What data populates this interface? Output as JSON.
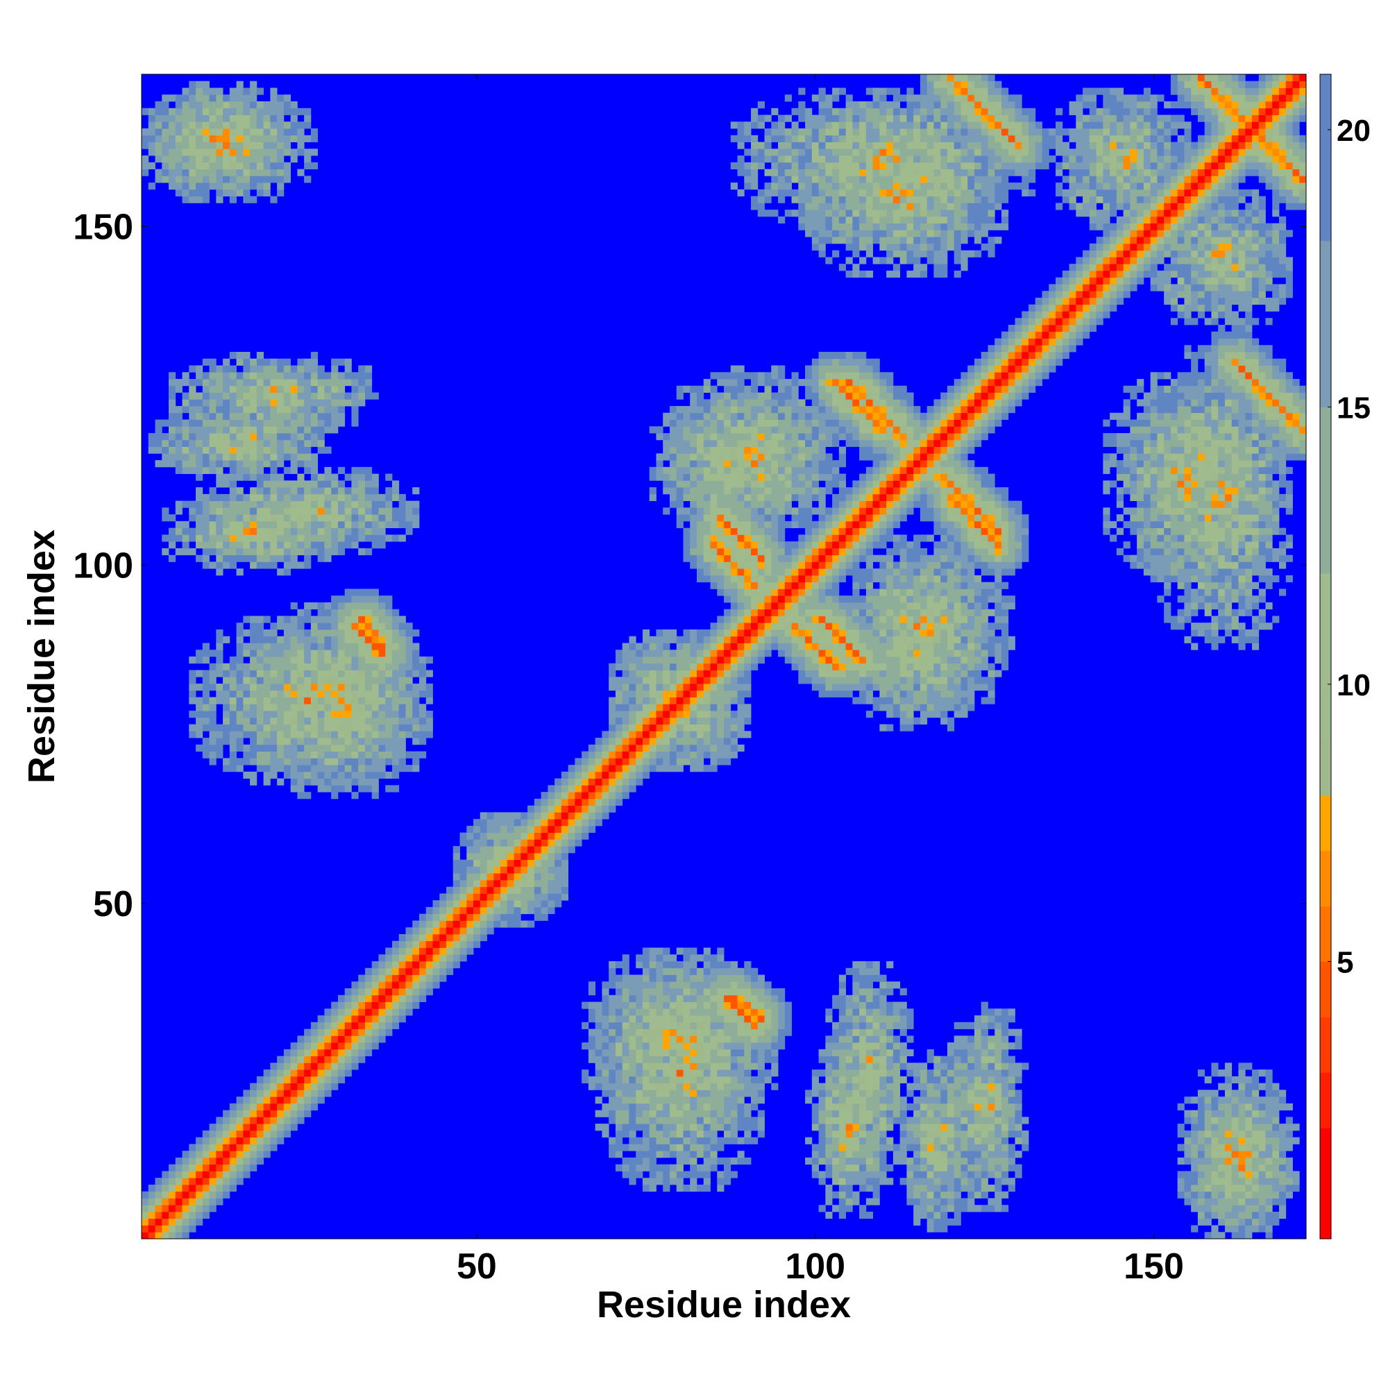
{
  "chart_data": {
    "type": "heatmap",
    "title": "",
    "xlabel": "Residue index",
    "ylabel": "Residue index",
    "xlim": [
      1,
      172
    ],
    "ylim": [
      1,
      172
    ],
    "n_residues": 172,
    "x_ticks": [
      50,
      100,
      150
    ],
    "y_ticks": [
      50,
      100,
      150
    ],
    "x_tick_labels": [
      "50",
      "100",
      "150"
    ],
    "y_tick_labels": [
      "50",
      "100",
      "150"
    ],
    "grid": false,
    "colorbar": {
      "position": "right",
      "range": [
        0,
        21
      ],
      "ticks": [
        5,
        10,
        15,
        20
      ],
      "tick_labels": [
        "5",
        "10",
        "15",
        "20"
      ],
      "cutoff": 21,
      "colors": [
        {
          "max": 2,
          "color": "#ff0000"
        },
        {
          "max": 3,
          "color": "#ff1f00"
        },
        {
          "max": 4,
          "color": "#ff3c00"
        },
        {
          "max": 5,
          "color": "#ff5500"
        },
        {
          "max": 6,
          "color": "#ff7300"
        },
        {
          "max": 7,
          "color": "#ff8c00"
        },
        {
          "max": 8,
          "color": "#ffa500"
        },
        {
          "max": 9,
          "color": "#9fb98c"
        },
        {
          "max": 12,
          "color": "#a0bb8e"
        },
        {
          "max": 15,
          "color": "#8eae9a"
        },
        {
          "max": 18,
          "color": "#7b9cb7"
        },
        {
          "max": 21,
          "color": "#5f86c2"
        },
        {
          "max": 999,
          "color": "#0000ff"
        }
      ]
    },
    "features": {
      "diagonal": "distance 0 on the main diagonal, increasing away from it",
      "contact_lines": [
        {
          "type": "antiparallel",
          "from": [
            85,
            103
          ],
          "to": [
            91,
            97
          ]
        },
        {
          "type": "antiparallel",
          "from": [
            101,
            92
          ],
          "to": [
            107,
            86
          ]
        },
        {
          "type": "antiparallel",
          "from": [
            103,
            127
          ],
          "to": [
            110,
            120
          ]
        },
        {
          "type": "antiparallel",
          "from": [
            119,
            113
          ],
          "to": [
            127,
            105
          ]
        },
        {
          "type": "antiparallel",
          "from": [
            120,
            172
          ],
          "to": [
            130,
            162
          ]
        },
        {
          "type": "antiparallel",
          "from": [
            157,
            172
          ],
          "to": [
            166,
            163
          ]
        },
        {
          "type": "antiparallel",
          "from": [
            33,
            92
          ],
          "to": [
            36,
            88
          ]
        },
        {
          "type": "antiparallel",
          "from": [
            87,
            36
          ],
          "to": [
            91,
            32
          ]
        }
      ],
      "contact_blobs": [
        {
          "center": [
            13,
            162
          ],
          "size": [
            13,
            8
          ]
        },
        {
          "center": [
            15,
            118
          ],
          "size": [
            13,
            5
          ]
        },
        {
          "center": [
            17,
            105
          ],
          "size": [
            13,
            6
          ]
        },
        {
          "center": [
            25,
            80
          ],
          "size": [
            17,
            12
          ]
        },
        {
          "center": [
            80,
            30
          ],
          "size": [
            14,
            13
          ]
        },
        {
          "center": [
            108,
            25
          ],
          "size": [
            6,
            16
          ]
        },
        {
          "center": [
            125,
            20
          ],
          "size": [
            6,
            15
          ]
        },
        {
          "center": [
            163,
            12
          ],
          "size": [
            8,
            10
          ]
        },
        {
          "center": [
            90,
            115
          ],
          "size": [
            14,
            10
          ]
        },
        {
          "center": [
            117,
            90
          ],
          "size": [
            12,
            12
          ]
        },
        {
          "center": [
            160,
            110
          ],
          "size": [
            10,
            22
          ]
        },
        {
          "center": [
            113,
            155
          ],
          "size": [
            15,
            12
          ]
        },
        {
          "center": [
            145,
            160
          ],
          "size": [
            10,
            10
          ]
        },
        {
          "center": [
            55,
            55
          ],
          "size": [
            8,
            8
          ]
        },
        {
          "center": [
            80,
            80
          ],
          "size": [
            10,
            10
          ]
        }
      ]
    }
  }
}
